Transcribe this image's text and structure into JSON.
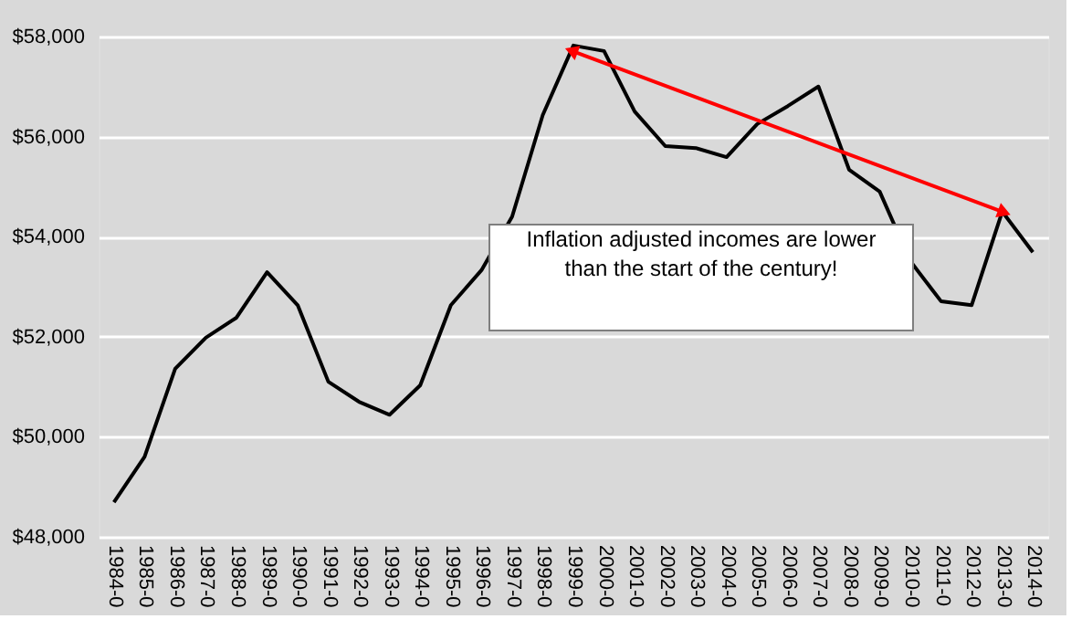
{
  "chart_data": {
    "type": "line",
    "categories": [
      "1984-0",
      "1985-0",
      "1986-0",
      "1987-0",
      "1988-0",
      "1989-0",
      "1990-0",
      "1991-0",
      "1992-0",
      "1993-0",
      "1994-0",
      "1995-0",
      "1996-0",
      "1997-0",
      "1998-0",
      "1999-0",
      "2000-0",
      "2001-0",
      "2002-0",
      "2003-0",
      "2004-0",
      "2005-0",
      "2006-0",
      "2007-0",
      "2008-0",
      "2009-0",
      "2010-0",
      "2011-0",
      "2012-0",
      "2013-0",
      "2014-0"
    ],
    "series": [
      {
        "color": "#000000",
        "values": [
          48690,
          49600,
          51360,
          51980,
          52380,
          53290,
          52630,
          51100,
          50700,
          50440,
          51030,
          52630,
          53330,
          54400,
          56430,
          57820,
          57710,
          56500,
          55810,
          55770,
          55590,
          56250,
          56610,
          57000,
          55340,
          54900,
          53510,
          52710,
          52630,
          54500,
          53690
        ]
      },
      {
        "type": "line",
        "color": "#ff0000",
        "marker": "triangle",
        "x": [
          "1999-0",
          "2013-0"
        ],
        "values": [
          57700,
          54500
        ]
      }
    ],
    "ylim": [
      48000,
      58000
    ],
    "yticks": [
      {
        "value": 48000,
        "label": "$48,000"
      },
      {
        "value": 50000,
        "label": "$50,000"
      },
      {
        "value": 52000,
        "label": "$52,000"
      },
      {
        "value": 54000,
        "label": "$54,000"
      },
      {
        "value": 56000,
        "label": "$56,000"
      },
      {
        "value": 58000,
        "label": "$58,000"
      }
    ],
    "grid": "y",
    "line_style": "solid",
    "annotations": [
      "Inflation adjusted incomes are lower than the start of the century!"
    ]
  }
}
